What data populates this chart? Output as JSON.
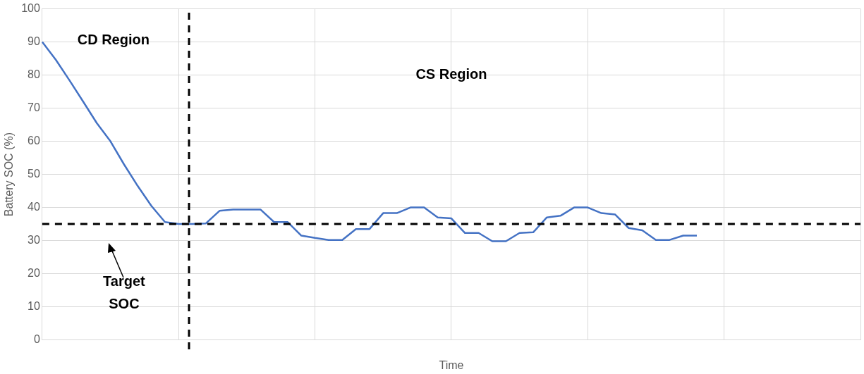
{
  "chart_data": {
    "type": "line",
    "xlabel": "Time",
    "ylabel": "Battery SOC (%)",
    "categories": [
      null,
      null,
      null,
      null,
      null,
      null,
      null,
      null,
      null,
      null,
      null,
      null,
      null,
      null,
      null,
      null,
      null,
      null,
      null,
      null,
      null,
      null,
      null,
      null,
      null,
      null,
      null,
      null,
      null,
      null,
      null,
      null,
      null,
      null,
      null,
      null,
      null,
      null,
      null,
      null,
      null,
      null,
      null,
      null,
      null,
      null,
      null,
      null,
      null,
      null,
      null,
      null,
      null,
      null,
      null,
      null,
      null,
      null,
      null,
      null,
      null
    ],
    "ylim": [
      0,
      100
    ],
    "yticks": [
      0,
      10,
      20,
      30,
      40,
      50,
      60,
      70,
      80,
      90,
      100
    ],
    "grid": true,
    "legend": false,
    "marker": "none",
    "line_style": "solid",
    "series": [
      {
        "color": "#4472c4",
        "values": [
          90,
          84.6,
          78.4,
          72,
          65.5,
          60,
          53,
          46.5,
          40.5,
          35.6,
          35,
          35,
          35.2,
          39,
          39.4,
          39.4,
          39.4,
          35.6,
          35.6,
          31.5,
          30.8,
          30.2,
          30.2,
          33.5,
          33.5,
          38.3,
          38.3,
          40,
          40,
          37,
          36.7,
          32.3,
          32.3,
          29.8,
          29.8,
          32.3,
          32.5,
          37,
          37.5,
          40,
          40,
          38.3,
          37.9,
          33.8,
          33.1,
          30.2,
          30.2,
          31.5,
          31.5,
          null,
          null,
          null,
          null,
          null,
          null,
          null,
          null,
          null,
          null,
          null,
          null
        ]
      }
    ],
    "ref_lines": [
      {
        "axis": "y",
        "value": 35,
        "color": "#000000",
        "line_style": "dashed"
      }
    ],
    "annotations": [
      "CD Region",
      "CS Region",
      "Target SOC"
    ]
  }
}
